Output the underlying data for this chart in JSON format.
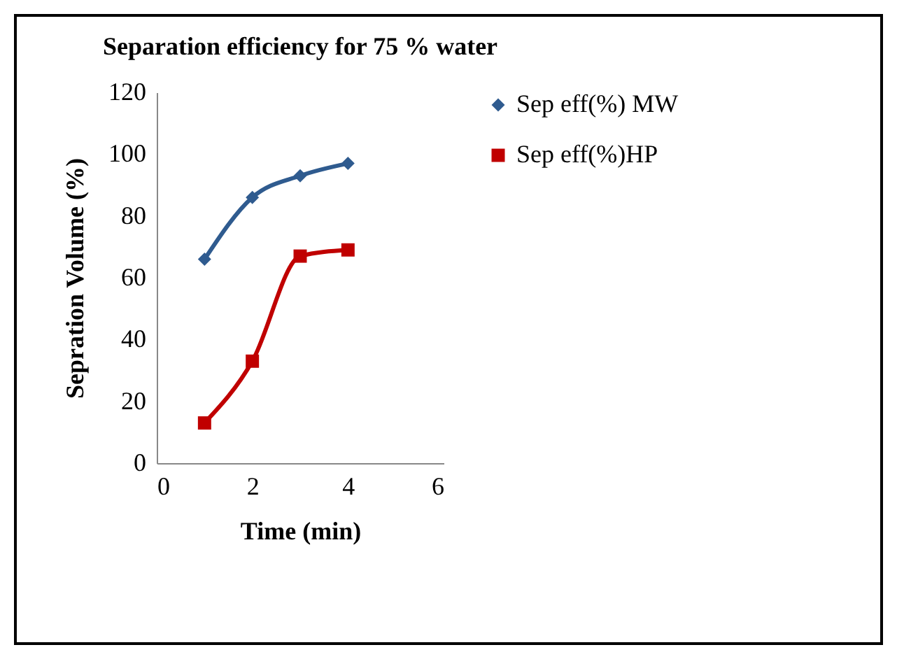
{
  "chart_data": {
    "type": "line",
    "title": "Separation efficiency for 75 % water",
    "xlabel": "Time (min)",
    "ylabel": "Sepration Volume (%)",
    "x": [
      1,
      2,
      3,
      4
    ],
    "series": [
      {
        "name": "Sep eff(%) MW",
        "color": "#2f5b8f",
        "marker": "diamond",
        "values": [
          66,
          86,
          93,
          97
        ]
      },
      {
        "name": "Sep eff(%)HP",
        "color": "#c00000",
        "marker": "square",
        "values": [
          13,
          33,
          67,
          69
        ]
      }
    ],
    "xlim": [
      0,
      6
    ],
    "xticks": [
      0,
      2,
      4,
      6
    ],
    "ylim": [
      0,
      120
    ],
    "yticks": [
      0,
      20,
      40,
      60,
      80,
      100,
      120
    ],
    "grid": false,
    "legend": "right"
  }
}
